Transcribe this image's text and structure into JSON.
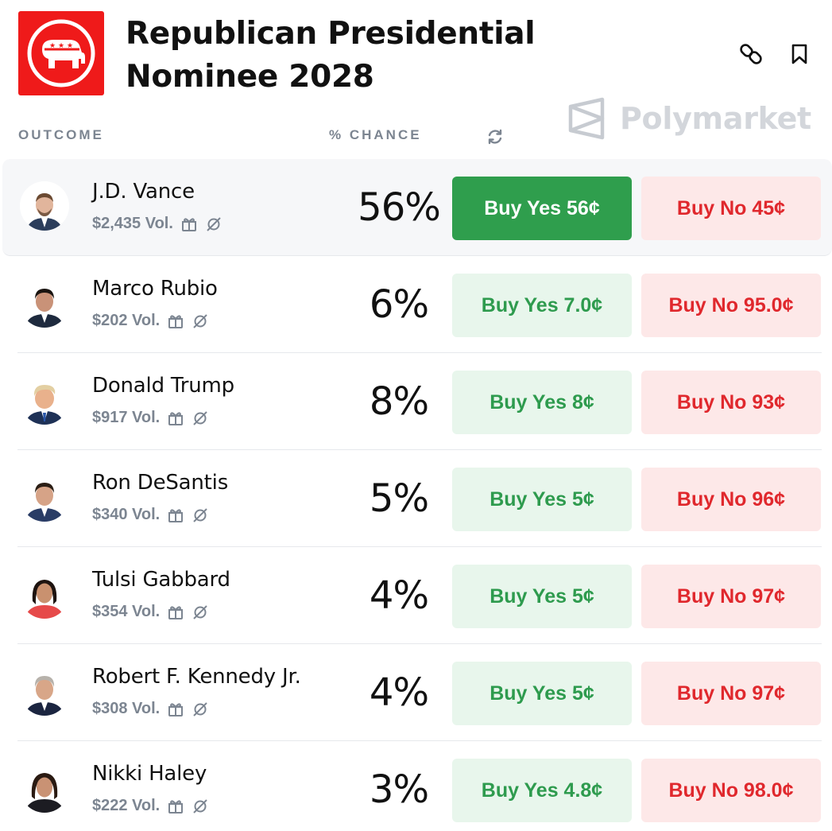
{
  "header": {
    "title": "Republican Presidential Nominee 2028",
    "logo_icon": "gop-elephant-icon",
    "brand": "Polymarket",
    "accent_color": "#ef1a1a"
  },
  "columns": {
    "outcome": "OUTCOME",
    "chance": "% CHANCE"
  },
  "colors": {
    "yes_solid": "#2f9e4d",
    "yes_soft": "#e8f6ec",
    "yes_text": "#2e9b4e",
    "no_soft": "#fde8e8",
    "no_text": "#e0282d"
  },
  "outcomes": [
    {
      "name": "J.D. Vance",
      "volume": "$2,435 Vol.",
      "chance": "56%",
      "yes": "Buy Yes 56¢",
      "no": "Buy No 45¢"
    },
    {
      "name": "Marco Rubio",
      "volume": "$202 Vol.",
      "chance": "6%",
      "yes": "Buy Yes 7.0¢",
      "no": "Buy No 95.0¢"
    },
    {
      "name": "Donald Trump",
      "volume": "$917 Vol.",
      "chance": "8%",
      "yes": "Buy Yes 8¢",
      "no": "Buy No 93¢"
    },
    {
      "name": "Ron DeSantis",
      "volume": "$340 Vol.",
      "chance": "5%",
      "yes": "Buy Yes 5¢",
      "no": "Buy No 96¢"
    },
    {
      "name": "Tulsi Gabbard",
      "volume": "$354 Vol.",
      "chance": "4%",
      "yes": "Buy Yes 5¢",
      "no": "Buy No 97¢"
    },
    {
      "name": "Robert F. Kennedy Jr.",
      "volume": "$308 Vol.",
      "chance": "4%",
      "yes": "Buy Yes 5¢",
      "no": "Buy No 97¢"
    },
    {
      "name": "Nikki Haley",
      "volume": "$222 Vol.",
      "chance": "3%",
      "yes": "Buy Yes 4.8¢",
      "no": "Buy No 98.0¢"
    }
  ]
}
